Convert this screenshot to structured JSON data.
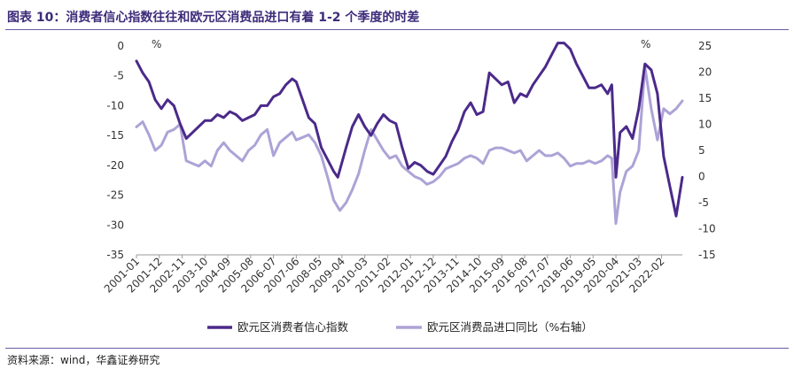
{
  "header": {
    "title": "图表 10：消费者信心指数往往和欧元区消费品进口有着 1-2 个季度的时差"
  },
  "source": {
    "text": "资料来源：wind，华鑫证券研究"
  },
  "colors": {
    "consumer_confidence": "#4b2a8a",
    "imports_yoy": "#ada3d6",
    "rule": "#6b5ca5"
  },
  "chart_data": {
    "type": "line",
    "title": "消费者信心指数往往和欧元区消费品进口有着 1-2 个季度的时差",
    "left_axis": {
      "unit": "%",
      "ylim": [
        -35,
        0
      ],
      "ticks": [
        0,
        -5,
        -10,
        -15,
        -20,
        -25,
        -30,
        -35
      ]
    },
    "right_axis": {
      "unit": "%",
      "ylim": [
        -15,
        25
      ],
      "ticks": [
        25,
        20,
        15,
        10,
        5,
        0,
        -5,
        -10,
        -15
      ]
    },
    "x_range": [
      "2001-01",
      "2022-12"
    ],
    "x_ticks": [
      "2001-01",
      "2001-12",
      "2002-11",
      "2003-10",
      "2004-09",
      "2005-08",
      "2006-07",
      "2007-06",
      "2008-05",
      "2009-04",
      "2010-03",
      "2011-02",
      "2012-01",
      "2012-12",
      "2013-11",
      "2014-10",
      "2015-09",
      "2016-08",
      "2017-07",
      "2018-06",
      "2019-05",
      "2020-04",
      "2021-03",
      "2022-02"
    ],
    "grid": false,
    "legend": "bottom",
    "series": [
      {
        "name": "欧元区消费者信心指数",
        "axis": "left",
        "points": [
          [
            "2001-01",
            -2.5
          ],
          [
            "2001-04",
            -4.5
          ],
          [
            "2001-07",
            -6
          ],
          [
            "2001-10",
            -9
          ],
          [
            "2002-01",
            -10.5
          ],
          [
            "2002-04",
            -9
          ],
          [
            "2002-07",
            -10
          ],
          [
            "2002-10",
            -13
          ],
          [
            "2003-01",
            -15.5
          ],
          [
            "2003-04",
            -14.5
          ],
          [
            "2003-07",
            -13.5
          ],
          [
            "2003-10",
            -12.5
          ],
          [
            "2004-01",
            -12.5
          ],
          [
            "2004-04",
            -11.5
          ],
          [
            "2004-07",
            -12
          ],
          [
            "2004-10",
            -11
          ],
          [
            "2005-01",
            -11.5
          ],
          [
            "2005-04",
            -12.5
          ],
          [
            "2005-07",
            -12
          ],
          [
            "2005-10",
            -11.5
          ],
          [
            "2006-01",
            -10
          ],
          [
            "2006-04",
            -10
          ],
          [
            "2006-07",
            -8.5
          ],
          [
            "2006-10",
            -8
          ],
          [
            "2007-01",
            -6.5
          ],
          [
            "2007-04",
            -5.5
          ],
          [
            "2007-06",
            -6
          ],
          [
            "2007-09",
            -9
          ],
          [
            "2007-12",
            -12
          ],
          [
            "2008-03",
            -13
          ],
          [
            "2008-06",
            -17
          ],
          [
            "2008-09",
            -19
          ],
          [
            "2008-12",
            -21
          ],
          [
            "2009-02",
            -22
          ],
          [
            "2009-04",
            -19.5
          ],
          [
            "2009-06",
            -17
          ],
          [
            "2009-09",
            -13.5
          ],
          [
            "2009-12",
            -11.5
          ],
          [
            "2010-03",
            -13.5
          ],
          [
            "2010-06",
            -15
          ],
          [
            "2010-09",
            -13
          ],
          [
            "2010-12",
            -11.5
          ],
          [
            "2011-03",
            -12.5
          ],
          [
            "2011-06",
            -13
          ],
          [
            "2011-09",
            -17
          ],
          [
            "2011-12",
            -20.5
          ],
          [
            "2012-03",
            -19.5
          ],
          [
            "2012-06",
            -20
          ],
          [
            "2012-09",
            -21
          ],
          [
            "2012-12",
            -21.5
          ],
          [
            "2013-03",
            -20
          ],
          [
            "2013-06",
            -18.5
          ],
          [
            "2013-09",
            -16
          ],
          [
            "2013-12",
            -14
          ],
          [
            "2014-03",
            -11
          ],
          [
            "2014-06",
            -9.5
          ],
          [
            "2014-09",
            -11.5
          ],
          [
            "2014-12",
            -11
          ],
          [
            "2015-03",
            -4.5
          ],
          [
            "2015-06",
            -5.5
          ],
          [
            "2015-09",
            -6.5
          ],
          [
            "2015-12",
            -6
          ],
          [
            "2016-03",
            -9.5
          ],
          [
            "2016-06",
            -8
          ],
          [
            "2016-09",
            -8.5
          ],
          [
            "2016-12",
            -6.5
          ],
          [
            "2017-03",
            -5
          ],
          [
            "2017-06",
            -3.5
          ],
          [
            "2017-09",
            -1.5
          ],
          [
            "2017-12",
            0.5
          ],
          [
            "2018-03",
            0.5
          ],
          [
            "2018-06",
            -0.5
          ],
          [
            "2018-09",
            -3
          ],
          [
            "2018-12",
            -5
          ],
          [
            "2019-03",
            -7
          ],
          [
            "2019-06",
            -7
          ],
          [
            "2019-09",
            -6.5
          ],
          [
            "2019-12",
            -8
          ],
          [
            "2020-02",
            -6.5
          ],
          [
            "2020-04",
            -22
          ],
          [
            "2020-06",
            -14.5
          ],
          [
            "2020-09",
            -13.5
          ],
          [
            "2020-12",
            -15.5
          ],
          [
            "2021-03",
            -10.5
          ],
          [
            "2021-06",
            -3
          ],
          [
            "2021-09",
            -4
          ],
          [
            "2021-12",
            -8
          ],
          [
            "2022-03",
            -18.5
          ],
          [
            "2022-06",
            -23.5
          ],
          [
            "2022-09",
            -28.5
          ],
          [
            "2022-12",
            -22
          ]
        ]
      },
      {
        "name": "欧元区消费品进口同比（%右轴）",
        "axis": "right",
        "points": [
          [
            "2001-01",
            9.5
          ],
          [
            "2001-04",
            10.5
          ],
          [
            "2001-07",
            8
          ],
          [
            "2001-10",
            5
          ],
          [
            "2002-01",
            6
          ],
          [
            "2002-04",
            8.5
          ],
          [
            "2002-07",
            9
          ],
          [
            "2002-10",
            10
          ],
          [
            "2003-01",
            3
          ],
          [
            "2003-04",
            2.5
          ],
          [
            "2003-07",
            2
          ],
          [
            "2003-10",
            3
          ],
          [
            "2004-01",
            2
          ],
          [
            "2004-04",
            5
          ],
          [
            "2004-07",
            6.5
          ],
          [
            "2004-10",
            5
          ],
          [
            "2005-01",
            4
          ],
          [
            "2005-04",
            3
          ],
          [
            "2005-07",
            5
          ],
          [
            "2005-10",
            6
          ],
          [
            "2006-01",
            8
          ],
          [
            "2006-04",
            9
          ],
          [
            "2006-07",
            4
          ],
          [
            "2006-10",
            6.5
          ],
          [
            "2007-01",
            7.5
          ],
          [
            "2007-04",
            8.5
          ],
          [
            "2007-06",
            7
          ],
          [
            "2007-09",
            7.5
          ],
          [
            "2007-12",
            8
          ],
          [
            "2008-03",
            6.5
          ],
          [
            "2008-06",
            4
          ],
          [
            "2008-09",
            0
          ],
          [
            "2008-12",
            -4.5
          ],
          [
            "2009-03",
            -6.5
          ],
          [
            "2009-06",
            -5
          ],
          [
            "2009-09",
            -2.5
          ],
          [
            "2009-12",
            0.5
          ],
          [
            "2010-03",
            5
          ],
          [
            "2010-06",
            9
          ],
          [
            "2010-09",
            7
          ],
          [
            "2010-12",
            5
          ],
          [
            "2011-03",
            3.5
          ],
          [
            "2011-06",
            4
          ],
          [
            "2011-09",
            2
          ],
          [
            "2011-12",
            1
          ],
          [
            "2012-03",
            0
          ],
          [
            "2012-06",
            -0.5
          ],
          [
            "2012-09",
            -1.5
          ],
          [
            "2012-12",
            -1
          ],
          [
            "2013-03",
            0
          ],
          [
            "2013-06",
            1.5
          ],
          [
            "2013-09",
            2
          ],
          [
            "2013-12",
            2.5
          ],
          [
            "2014-03",
            3.5
          ],
          [
            "2014-06",
            4
          ],
          [
            "2014-09",
            3.5
          ],
          [
            "2014-12",
            2.5
          ],
          [
            "2015-03",
            5
          ],
          [
            "2015-06",
            5.5
          ],
          [
            "2015-09",
            5.5
          ],
          [
            "2015-12",
            5
          ],
          [
            "2016-03",
            4.5
          ],
          [
            "2016-06",
            5
          ],
          [
            "2016-09",
            3
          ],
          [
            "2016-12",
            4
          ],
          [
            "2017-03",
            5
          ],
          [
            "2017-06",
            4
          ],
          [
            "2017-09",
            4
          ],
          [
            "2017-12",
            4.5
          ],
          [
            "2018-03",
            3.5
          ],
          [
            "2018-06",
            2
          ],
          [
            "2018-09",
            2.5
          ],
          [
            "2018-12",
            2.5
          ],
          [
            "2019-03",
            3
          ],
          [
            "2019-06",
            2.5
          ],
          [
            "2019-09",
            3
          ],
          [
            "2019-12",
            4
          ],
          [
            "2020-02",
            3.5
          ],
          [
            "2020-04",
            -9
          ],
          [
            "2020-06",
            -3
          ],
          [
            "2020-09",
            1
          ],
          [
            "2020-12",
            2
          ],
          [
            "2021-03",
            5
          ],
          [
            "2021-06",
            21
          ],
          [
            "2021-09",
            13
          ],
          [
            "2021-12",
            7
          ],
          [
            "2022-03",
            13
          ],
          [
            "2022-06",
            12
          ],
          [
            "2022-09",
            13
          ],
          [
            "2022-12",
            14.5
          ]
        ]
      }
    ]
  }
}
